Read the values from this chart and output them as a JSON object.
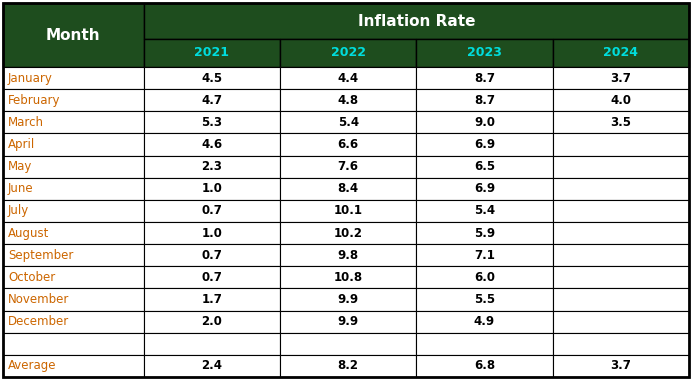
{
  "header_main": "Inflation Rate",
  "header_sub": [
    "2021",
    "2022",
    "2023",
    "2024"
  ],
  "col_month": "Month",
  "months": [
    "January",
    "February",
    "March",
    "April",
    "May",
    "June",
    "July",
    "August",
    "September",
    "October",
    "November",
    "December",
    "",
    "Average"
  ],
  "data": {
    "2021": [
      "4.5",
      "4.7",
      "5.3",
      "4.6",
      "2.3",
      "1.0",
      "0.7",
      "1.0",
      "0.7",
      "0.7",
      "1.7",
      "2.0",
      "",
      "2.4"
    ],
    "2022": [
      "4.4",
      "4.8",
      "5.4",
      "6.6",
      "7.6",
      "8.4",
      "10.1",
      "10.2",
      "9.8",
      "10.8",
      "9.9",
      "9.9",
      "",
      "8.2"
    ],
    "2023": [
      "8.7",
      "8.7",
      "9.0",
      "6.9",
      "6.5",
      "6.9",
      "5.4",
      "5.9",
      "7.1",
      "6.0",
      "5.5",
      "4.9",
      "",
      "6.8"
    ],
    "2024": [
      "3.7",
      "4.0",
      "3.5",
      "",
      "",
      "",
      "",
      "",
      "",
      "",
      "",
      "",
      "",
      "3.7"
    ]
  },
  "dark_green": "#1e4d1e",
  "border_color": "#000000",
  "text_white": "#ffffff",
  "text_black": "#000000",
  "text_orange": "#cc6600",
  "text_cyan": "#00cccc",
  "month_label_color": "#cc6600",
  "year_label_color": "#00dddd",
  "avg_label_color": "#cc6600",
  "header_fontsize": 10.5,
  "year_fontsize": 9.0,
  "data_fontsize": 8.5,
  "month_fontsize": 8.5
}
